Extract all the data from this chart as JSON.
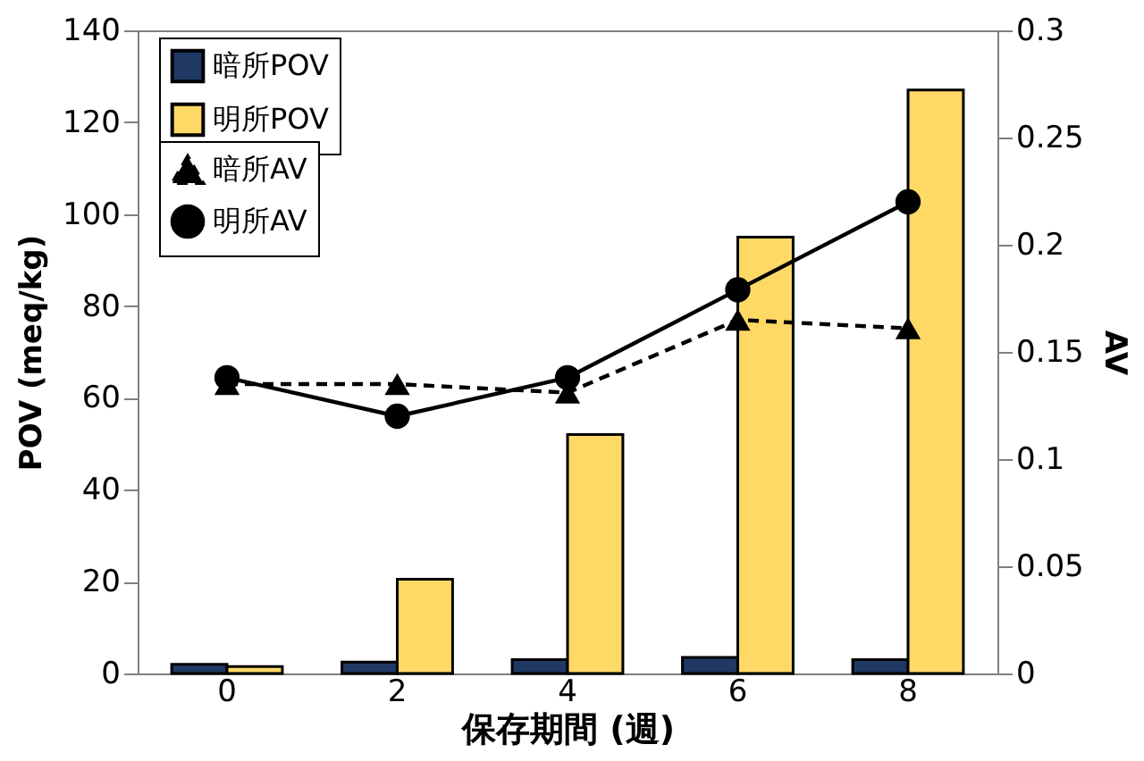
{
  "chart_data": {
    "type": "bar",
    "xlabel": "保存期間 (週)",
    "ylabel": "POV (meq/kg)",
    "y2label": "AV",
    "categories": [
      "0",
      "2",
      "4",
      "6",
      "8"
    ],
    "series": [
      {
        "name": "暗所POV",
        "color": "#203864",
        "values": [
          2,
          2.5,
          3,
          3.5,
          3
        ]
      },
      {
        "name": "明所POV",
        "color": "#ffd966",
        "values": [
          1.5,
          20.5,
          52,
          95,
          127
        ]
      },
      {
        "name": "暗所AV",
        "type": "line",
        "axis": "y2",
        "color": "#000000",
        "marker": "triangle",
        "line_style": "dashed",
        "values": [
          0.135,
          0.135,
          0.131,
          0.165,
          0.161
        ]
      },
      {
        "name": "明所AV",
        "type": "line",
        "axis": "y2",
        "color": "#000000",
        "marker": "circle",
        "line_style": "solid",
        "values": [
          0.138,
          0.12,
          0.138,
          0.179,
          0.22
        ]
      }
    ],
    "ylim": [
      0,
      140
    ],
    "yticks": [
      0,
      20,
      40,
      60,
      80,
      100,
      120,
      140
    ],
    "y2lim": [
      0,
      0.3
    ],
    "y2ticks": [
      0,
      0.05,
      0.1,
      0.15,
      0.2,
      0.25,
      0.3
    ],
    "grid": false,
    "legend": "top left"
  }
}
